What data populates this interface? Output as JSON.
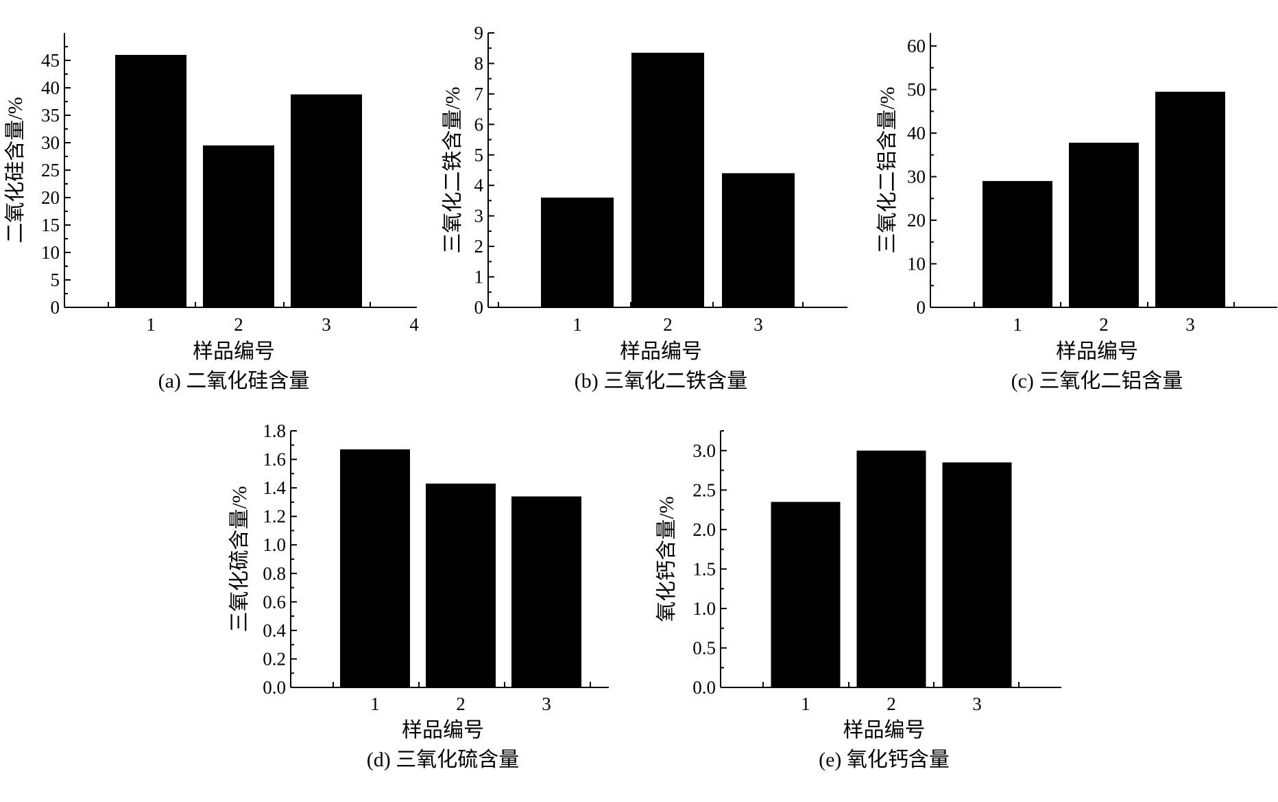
{
  "chart_data": [
    {
      "type": "bar",
      "categories": [
        "1",
        "2",
        "3"
      ],
      "values": [
        46,
        29.5,
        38.8
      ],
      "xticks": [
        "1",
        "2",
        "3",
        "4"
      ],
      "yticks": [
        "0",
        "5",
        "10",
        "15",
        "20",
        "25",
        "30",
        "35",
        "40",
        "45"
      ],
      "ylim": [
        0,
        50
      ],
      "xlabel": "样品编号",
      "ylabel": "二氧化硅含量/%",
      "caption": "(a) 二氧化硅含量"
    },
    {
      "type": "bar",
      "categories": [
        "1",
        "2",
        "3"
      ],
      "values": [
        3.6,
        8.35,
        4.4
      ],
      "xticks": [
        "1",
        "2",
        "3"
      ],
      "yticks": [
        "0",
        "1",
        "2",
        "3",
        "4",
        "5",
        "6",
        "7",
        "8",
        "9"
      ],
      "ylim": [
        0,
        9
      ],
      "xlabel": "样品编号",
      "ylabel": "三氧化二铁含量/%",
      "caption": "(b) 三氧化二铁含量"
    },
    {
      "type": "bar",
      "categories": [
        "1",
        "2",
        "3"
      ],
      "values": [
        29,
        37.8,
        49.5
      ],
      "xticks": [
        "1",
        "2",
        "3"
      ],
      "yticks": [
        "0",
        "10",
        "20",
        "30",
        "40",
        "50",
        "60"
      ],
      "ylim": [
        0,
        63
      ],
      "xlabel": "样品编号",
      "ylabel": "三氧化二铝含量/%",
      "caption": "(c) 三氧化二铝含量"
    },
    {
      "type": "bar",
      "categories": [
        "1",
        "2",
        "3"
      ],
      "values": [
        1.67,
        1.43,
        1.34
      ],
      "xticks": [
        "1",
        "2",
        "3"
      ],
      "yticks": [
        "0.0",
        "0.2",
        "0.4",
        "0.6",
        "0.8",
        "1.0",
        "1.2",
        "1.4",
        "1.6",
        "1.8"
      ],
      "ylim": [
        0,
        1.8
      ],
      "xlabel": "样品编号",
      "ylabel": "三氧化硫含量/%",
      "caption": "(d) 三氧化硫含量"
    },
    {
      "type": "bar",
      "categories": [
        "1",
        "2",
        "3"
      ],
      "values": [
        2.35,
        3.0,
        2.85
      ],
      "xticks": [
        "1",
        "2",
        "3"
      ],
      "yticks": [
        "0.0",
        "0.5",
        "1.0",
        "1.5",
        "2.0",
        "2.5",
        "3.0"
      ],
      "ylim": [
        0,
        3.25
      ],
      "xlabel": "样品编号",
      "ylabel": "氧化钙含量/%",
      "caption": "(e) 氧化钙含量"
    }
  ]
}
